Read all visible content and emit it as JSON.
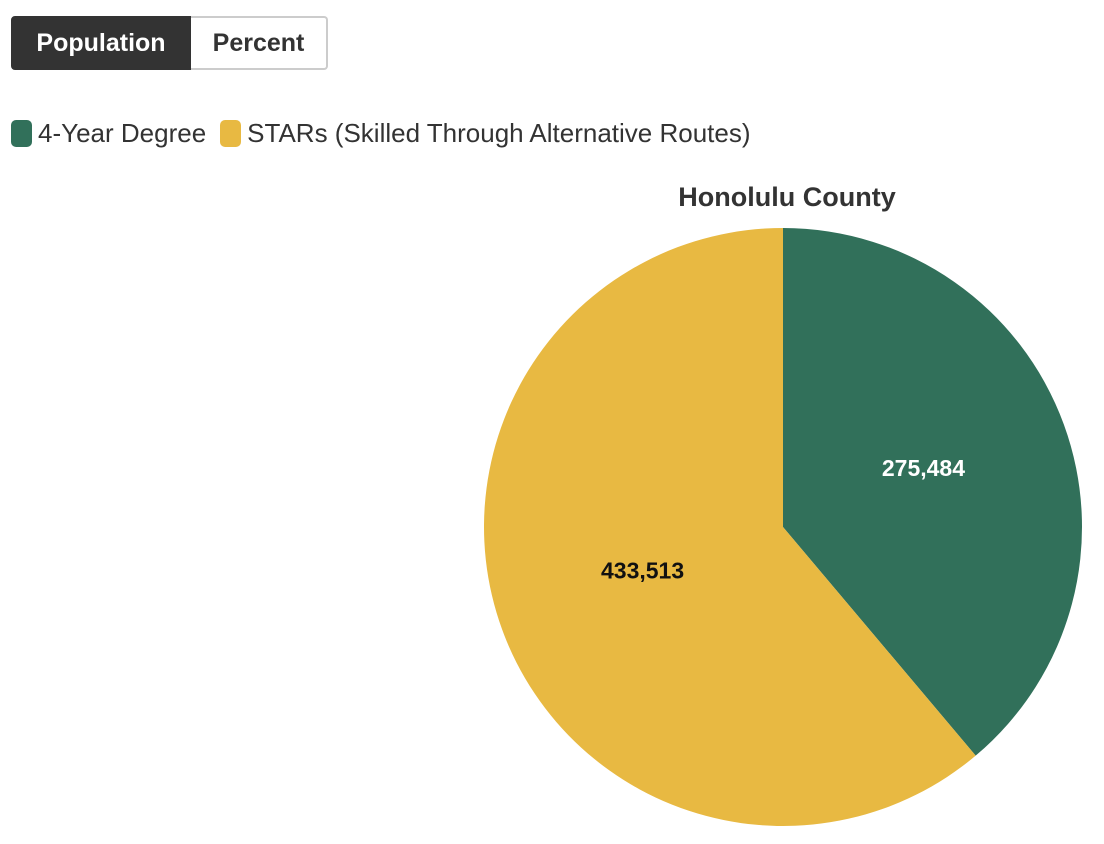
{
  "controls": {
    "buttons": [
      "Population",
      "Percent"
    ],
    "active": 0
  },
  "chart_data": {
    "type": "pie",
    "title": "Honolulu County",
    "categories": [
      "4-Year Degree",
      "STARs (Skilled Through Alternative Routes)"
    ],
    "values": [
      275484,
      433513
    ],
    "value_labels": [
      "275,484",
      "433,513"
    ],
    "colors": [
      "#31705a",
      "#e8b942"
    ]
  }
}
